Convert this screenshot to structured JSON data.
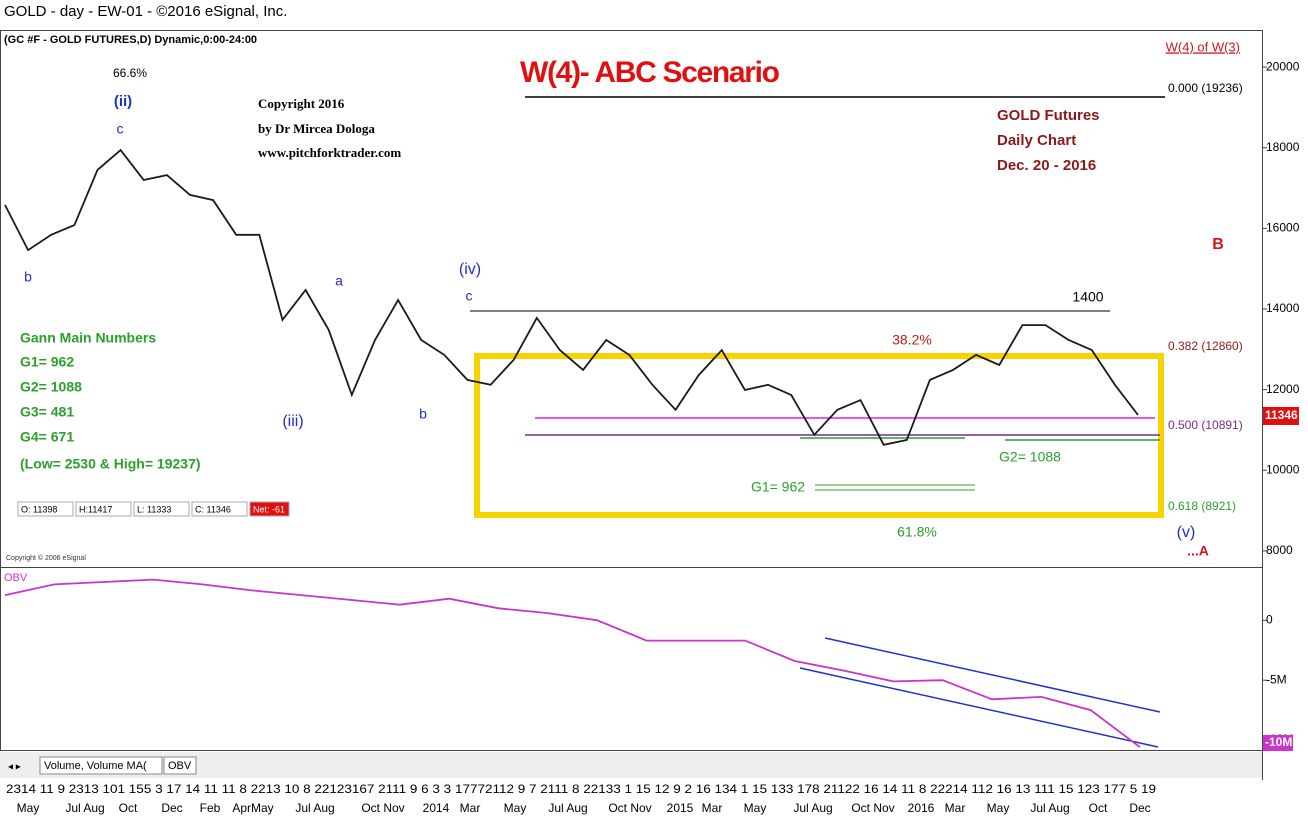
{
  "header": "GOLD -  day - EW-01 - ©2016 eSignal, Inc.",
  "chart_data": [
    {
      "type": "line",
      "title": "(GC #F - GOLD FUTURES,D) Dynamic,0:00-24:00",
      "heading": "W(4)- ABC Scenario",
      "series": [
        {
          "color": "#1a1a1a",
          "values": [
            16580,
            15460,
            15840,
            16080,
            17450,
            17940,
            17200,
            17320,
            16830,
            16700,
            15840,
            15840,
            13730,
            14470,
            13480,
            11870,
            13230,
            14220,
            13230,
            12860,
            12240,
            12120,
            12740,
            13780,
            12980,
            12490,
            13230,
            12860,
            12120,
            11500,
            12360,
            12980,
            11990,
            12120,
            11870,
            10880,
            11500,
            11740,
            10630,
            10750,
            12240,
            12490,
            12860,
            12610,
            13600,
            13600,
            13230,
            12980,
            12120,
            11370
          ]
        }
      ],
      "ylim": [
        7600,
        20920
      ],
      "yticks": [
        8000,
        10000,
        12000,
        14000,
        16000,
        18000,
        20000
      ],
      "last_value": 11346
    },
    {
      "type": "line",
      "title": "OBV",
      "series": [
        {
          "color": "#cc33cc",
          "values": [
            2100000,
            3000000,
            3200000,
            3400000,
            3000000,
            2500000,
            2100000,
            1700000,
            1300000,
            1800000,
            1000000,
            600000,
            0,
            -1700000,
            -1700000,
            -1700000,
            -3400000,
            -4200000,
            -5100000,
            -5000000,
            -6600000,
            -6400000,
            -7500000,
            -10600000
          ]
        }
      ],
      "ylim": [
        -11000000,
        4200000
      ],
      "yticks": [
        0,
        {
          "value": -5000000,
          "label": "-5M"
        },
        {
          "value": -10000000,
          "label": "-10M"
        }
      ],
      "last_label": "-10M"
    }
  ],
  "annotations": [
    "W(4) of W(3)",
    "0.000 (19236)",
    "66.6%",
    "(ii)",
    "c",
    "Copyright 2016",
    "by Dr Mircea Dologa",
    "www.pitchforktrader.com",
    "GOLD Futures",
    "Daily Chart",
    "Dec. 20 - 2016",
    "b",
    "B",
    "a",
    "(iv)",
    "c",
    "1400",
    "Gann Main Numbers",
    "G1= 962",
    "G2= 1088",
    "G3= 481",
    "G4= 671",
    "(Low= 2530 & High= 19237)",
    "38.2%",
    "0.382 (12860)",
    "(iii)",
    "b",
    "0.500 (10891)",
    "G2= 1088",
    "G1= 962",
    "0.618 (8921)",
    "61.8%",
    "(v)",
    "...A",
    "Copyright © 2006 eSignal"
  ],
  "ohlc": [
    "O: 11398",
    "H:11417",
    "L: 11333",
    "C: 11346",
    "Net: -61"
  ],
  "tabs": [
    "Volume, Volume MA(",
    "OBV"
  ],
  "x_axis": {
    "row1": "2314 11 9 2313 101 155   3 17 14 11 11 8 2213 10 8 22123167 2111 9   6   3   3 17772112 9   7 2111 8 22133   1 15 12 9   2 16 134   1 15 133 178 21122 16 14 11 8 22214  112 16 13 111 15 123 177   5 19",
    "row2": [
      "May",
      "Jul Aug",
      "Oct",
      "Dec",
      "Feb",
      "AprMay",
      "Jul Aug",
      "Oct Nov",
      "2014",
      "Mar",
      "May",
      "Jul Aug",
      "Oct Nov",
      "2015",
      "Mar",
      "May",
      "Jul Aug",
      "Oct Nov",
      "2016",
      "Mar",
      "May",
      "Jul Aug",
      "Oct",
      "Dec"
    ]
  }
}
